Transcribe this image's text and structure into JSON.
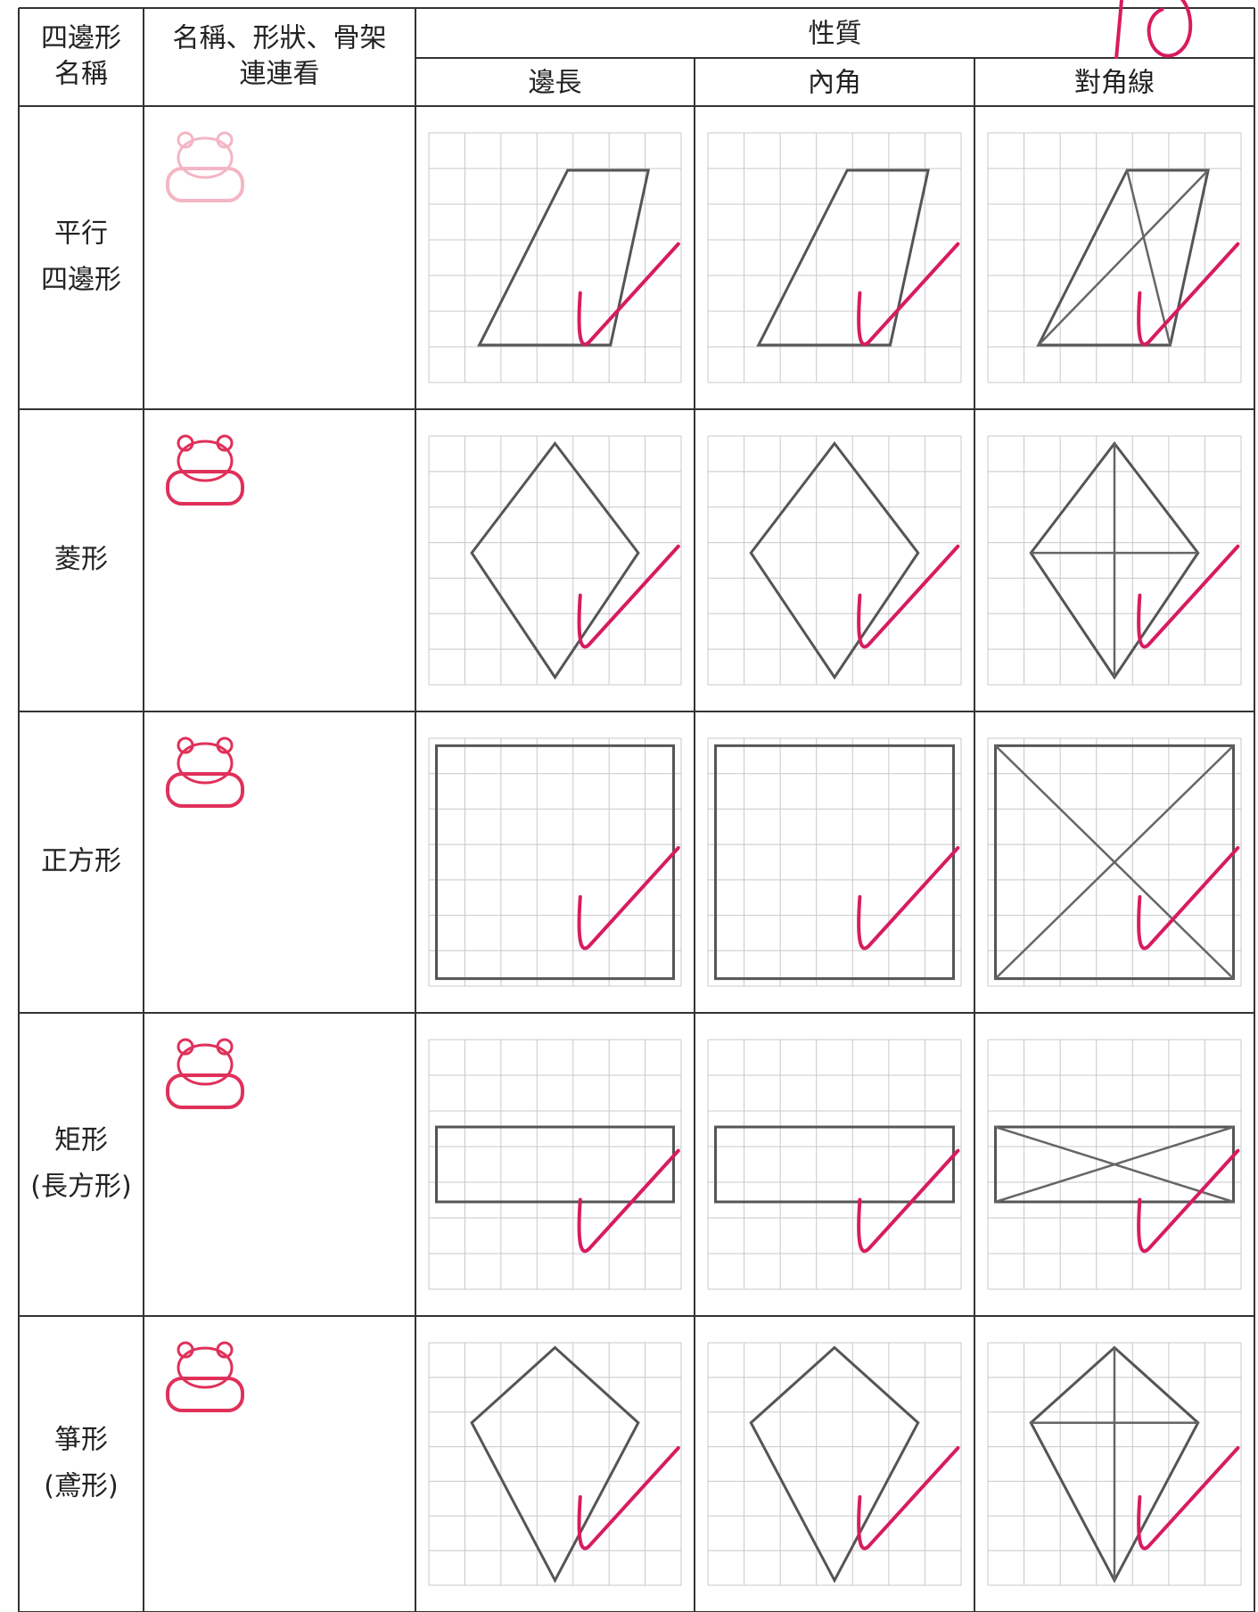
{
  "header": {
    "name": [
      "四邊形",
      "名稱"
    ],
    "match": [
      "名稱、形狀、骨架",
      "連連看"
    ],
    "properties": "性質",
    "columns": [
      "邊長",
      "內角",
      "對角線"
    ]
  },
  "rows": [
    {
      "name": [
        "平行",
        "四邊形"
      ]
    },
    {
      "name": [
        "菱形"
      ]
    },
    {
      "name": [
        "正方形"
      ]
    },
    {
      "name": [
        "矩形",
        "(長方形)"
      ]
    },
    {
      "name": [
        "箏形",
        "(鳶形)"
      ]
    }
  ]
}
